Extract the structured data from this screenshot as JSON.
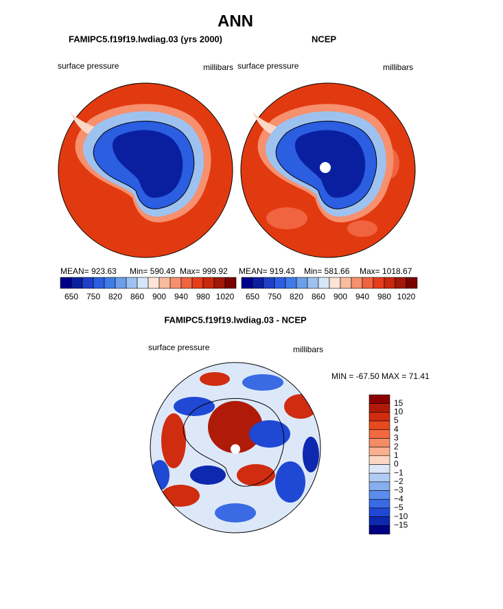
{
  "title": "ANN",
  "panels": [
    {
      "title": "FAMIPC5.f19f19.lwdiag.03 (yrs 2000)",
      "left_label": "surface pressure",
      "right_label": "millibars",
      "stats": [
        "MEAN= 923.63",
        "Min= 590.49",
        "Max= 999.92"
      ],
      "colorbar": {
        "labels": [
          "650",
          "750",
          "820",
          "860",
          "900",
          "940",
          "980",
          "1020"
        ],
        "colors": [
          "#00008b",
          "#0a1fa0",
          "#1f3fc8",
          "#2b5ee0",
          "#3f7ce8",
          "#6d9eea",
          "#9ec2f0",
          "#d6e6f7",
          "#fde4d6",
          "#f9bca0",
          "#f6906e",
          "#f06440",
          "#e83c1c",
          "#c8280c",
          "#a01808",
          "#7a0000"
        ]
      }
    },
    {
      "title": "NCEP",
      "left_label": "surface pressure",
      "right_label": "millibars",
      "stats": [
        "MEAN= 919.43",
        "Min= 581.66",
        "Max= 1018.67"
      ],
      "colorbar": {
        "labels": [
          "650",
          "750",
          "820",
          "860",
          "900",
          "940",
          "980",
          "1020"
        ],
        "colors": [
          "#00008b",
          "#0a1fa0",
          "#1f3fc8",
          "#2b5ee0",
          "#3f7ce8",
          "#6d9eea",
          "#9ec2f0",
          "#d6e6f7",
          "#fde4d6",
          "#f9bca0",
          "#f6906e",
          "#f06440",
          "#e83c1c",
          "#c8280c",
          "#a01808",
          "#7a0000"
        ]
      }
    }
  ],
  "difference": {
    "title": "FAMIPC5.f19f19.lwdiag.03 - NCEP",
    "left_label": "surface pressure",
    "right_label": "millibars",
    "stats": "MIN = -67.50 MAX =  71.41",
    "colorbar": {
      "labels": [
        "15",
        "10",
        "5",
        "4",
        "3",
        "2",
        "1",
        "0",
        "−1",
        "−2",
        "−3",
        "−4",
        "−5",
        "−10",
        "−15"
      ],
      "colors": [
        "#8b0000",
        "#b01a08",
        "#d02c10",
        "#e84a20",
        "#f06a40",
        "#f48c66",
        "#f8b090",
        "#fcd8c4",
        "#dce8f8",
        "#b0ccf4",
        "#86aef0",
        "#5c8cec",
        "#3a6ae4",
        "#1f48d4",
        "#0e28b0",
        "#000080"
      ]
    }
  }
}
